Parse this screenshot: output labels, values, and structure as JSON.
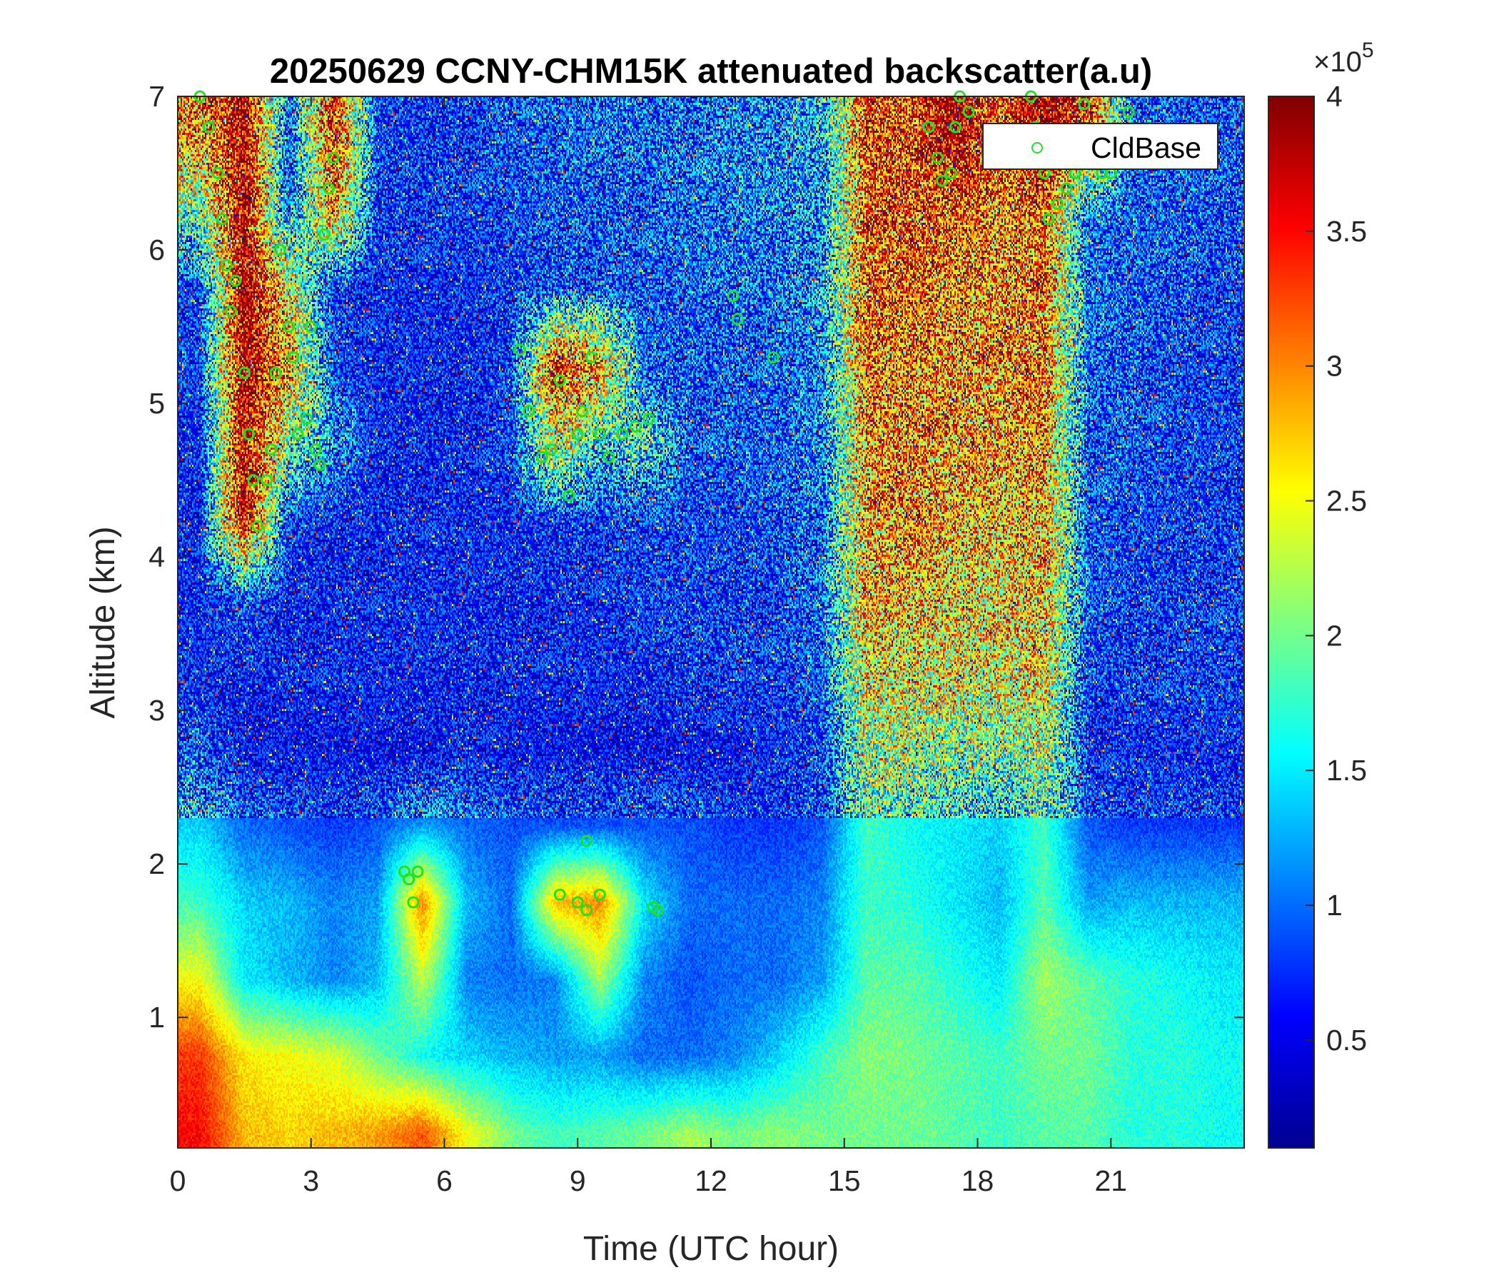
{
  "chart_data": {
    "type": "heatmap",
    "title": "20250629 CCNY-CHM15K attenuated backscatter(a.u)",
    "xlabel": "Time (UTC hour)",
    "ylabel": "Altitude (km)",
    "xlim": [
      0,
      24
    ],
    "ylim": [
      0.15,
      7
    ],
    "xticks": [
      "0",
      "3",
      "6",
      "9",
      "12",
      "15",
      "18",
      "21"
    ],
    "xtick_values": [
      0,
      3,
      6,
      9,
      12,
      15,
      18,
      21
    ],
    "yticks": [
      "1",
      "2",
      "3",
      "4",
      "5",
      "6",
      "7"
    ],
    "ytick_values": [
      1,
      2,
      3,
      4,
      5,
      6,
      7
    ],
    "colorbar": {
      "colormap": "jet",
      "clim": [
        0.1,
        4
      ],
      "multiplier": "×10",
      "exponent": "5",
      "ticks": [
        "0.5",
        "1",
        "1.5",
        "2",
        "2.5",
        "3",
        "3.5",
        "4"
      ],
      "tick_values": [
        0.5,
        1,
        1.5,
        2,
        2.5,
        3,
        3.5,
        4
      ]
    },
    "grid": false,
    "hours": [
      0.5,
      1.5,
      2.5,
      3.5,
      4.5,
      5.5,
      6.5,
      7.5,
      8.5,
      9.5,
      10.5,
      11.5,
      12.5,
      13.5,
      14.5,
      15.5,
      16.5,
      17.5,
      18.5,
      19.5,
      20.5,
      21.5,
      22.5,
      23.5
    ],
    "altitudes": [
      0.25,
      0.75,
      1.25,
      1.75,
      2.25,
      2.75,
      3.25,
      3.75,
      4.25,
      4.75,
      5.25,
      5.75,
      6.25,
      6.75
    ],
    "values": [
      [
        3.5,
        2.8,
        2.7,
        2.8,
        2.9,
        3.2,
        2.5,
        2.0,
        1.8,
        1.9,
        2.0,
        2.2,
        2.0,
        2.1,
        2.0,
        2.0,
        2.0,
        1.9,
        1.8,
        1.9,
        1.9,
        1.7,
        1.7,
        1.6
      ],
      [
        3.3,
        2.6,
        2.5,
        2.4,
        2.0,
        1.6,
        1.4,
        1.3,
        1.2,
        1.2,
        1.0,
        1.0,
        1.1,
        1.4,
        1.8,
        2.1,
        2.0,
        1.9,
        1.8,
        2.0,
        2.0,
        1.7,
        1.7,
        1.6
      ],
      [
        2.5,
        1.5,
        1.3,
        1.1,
        1.3,
        2.3,
        1.1,
        1.0,
        1.1,
        2.2,
        1.1,
        0.9,
        1.0,
        1.0,
        1.2,
        1.9,
        1.9,
        1.7,
        1.5,
        2.2,
        1.9,
        1.7,
        1.6,
        1.5
      ],
      [
        1.8,
        1.4,
        1.3,
        1.1,
        1.2,
        3.0,
        1.3,
        1.0,
        2.8,
        3.0,
        1.5,
        1.0,
        1.0,
        1.0,
        1.1,
        1.8,
        1.7,
        1.5,
        1.3,
        1.9,
        1.2,
        1.3,
        1.3,
        1.3
      ],
      [
        1.4,
        1.0,
        0.9,
        0.8,
        0.9,
        1.2,
        1.0,
        0.9,
        0.9,
        0.9,
        0.9,
        0.9,
        0.8,
        0.8,
        0.9,
        1.8,
        1.6,
        1.5,
        1.4,
        1.8,
        0.9,
        0.8,
        0.8,
        0.8
      ],
      [
        0.9,
        0.6,
        0.6,
        0.6,
        0.6,
        0.6,
        0.7,
        0.6,
        0.6,
        0.6,
        0.6,
        0.6,
        0.6,
        0.7,
        0.8,
        2.2,
        2.2,
        2.0,
        1.9,
        2.3,
        0.7,
        0.7,
        0.7,
        0.7
      ],
      [
        0.7,
        0.7,
        0.7,
        0.7,
        0.7,
        0.7,
        0.7,
        0.7,
        0.7,
        0.7,
        0.7,
        0.8,
        0.8,
        0.8,
        0.9,
        2.6,
        2.6,
        2.5,
        2.5,
        2.6,
        0.8,
        0.8,
        0.8,
        0.8
      ],
      [
        0.7,
        0.9,
        0.7,
        0.7,
        0.7,
        0.7,
        0.7,
        0.7,
        0.7,
        0.7,
        0.8,
        0.8,
        0.8,
        0.8,
        1.0,
        2.8,
        2.8,
        2.7,
        2.6,
        2.8,
        0.9,
        0.8,
        0.8,
        0.8
      ],
      [
        0.7,
        3.9,
        0.8,
        0.7,
        0.7,
        0.7,
        0.7,
        0.7,
        0.8,
        0.8,
        0.8,
        0.8,
        0.8,
        0.9,
        1.0,
        2.9,
        3.0,
        2.8,
        2.8,
        2.9,
        0.9,
        0.8,
        0.8,
        0.8
      ],
      [
        0.7,
        4.0,
        2.0,
        1.2,
        0.7,
        0.7,
        0.7,
        0.8,
        2.5,
        1.5,
        1.8,
        0.9,
        0.9,
        0.9,
        1.1,
        3.0,
        3.1,
        2.9,
        2.9,
        3.0,
        0.9,
        0.9,
        0.8,
        0.8
      ],
      [
        0.8,
        4.0,
        3.0,
        0.8,
        0.7,
        0.7,
        0.7,
        0.8,
        3.5,
        3.0,
        0.9,
        0.9,
        0.9,
        0.9,
        1.1,
        3.1,
        3.1,
        3.0,
        3.0,
        3.1,
        1.0,
        0.9,
        0.8,
        0.8
      ],
      [
        0.8,
        4.0,
        2.5,
        0.8,
        0.7,
        0.7,
        0.7,
        0.8,
        0.9,
        0.9,
        0.9,
        0.9,
        1.0,
        1.0,
        1.2,
        3.2,
        3.2,
        3.1,
        3.0,
        3.2,
        1.0,
        0.9,
        0.9,
        0.8
      ],
      [
        2.0,
        4.0,
        0.9,
        3.0,
        0.8,
        0.8,
        0.8,
        0.8,
        0.9,
        0.9,
        0.9,
        1.0,
        1.0,
        1.1,
        1.2,
        3.3,
        3.3,
        3.2,
        3.1,
        3.3,
        1.0,
        0.9,
        0.9,
        0.9
      ],
      [
        3.0,
        4.0,
        0.9,
        3.5,
        0.8,
        0.8,
        0.8,
        0.9,
        0.9,
        1.0,
        1.0,
        1.0,
        1.1,
        1.1,
        1.3,
        3.4,
        3.4,
        4.0,
        3.2,
        4.0,
        3.5,
        1.0,
        0.9,
        0.9
      ]
    ],
    "series": [
      {
        "name": "CldBase",
        "type": "scatter",
        "marker": "circle",
        "color": "#22e022",
        "points": [
          [
            0.5,
            7.0
          ],
          [
            0.7,
            6.8
          ],
          [
            0.9,
            6.5
          ],
          [
            1.0,
            6.2
          ],
          [
            1.1,
            5.9
          ],
          [
            1.3,
            5.8
          ],
          [
            1.2,
            5.6
          ],
          [
            1.5,
            5.2
          ],
          [
            1.6,
            4.8
          ],
          [
            1.7,
            4.5
          ],
          [
            1.8,
            4.2
          ],
          [
            2.0,
            4.5
          ],
          [
            2.1,
            4.7
          ],
          [
            2.2,
            5.2
          ],
          [
            2.3,
            6.0
          ],
          [
            2.5,
            5.5
          ],
          [
            2.6,
            5.3
          ],
          [
            2.7,
            4.8
          ],
          [
            2.9,
            4.9
          ],
          [
            3.0,
            5.5
          ],
          [
            3.1,
            4.7
          ],
          [
            3.2,
            4.6
          ],
          [
            3.3,
            6.1
          ],
          [
            3.4,
            6.4
          ],
          [
            3.5,
            6.6
          ],
          [
            5.1,
            1.95
          ],
          [
            5.2,
            1.9
          ],
          [
            5.4,
            1.95
          ],
          [
            5.3,
            1.75
          ],
          [
            7.7,
            5.35
          ],
          [
            7.9,
            4.95
          ],
          [
            8.2,
            4.65
          ],
          [
            8.4,
            4.7
          ],
          [
            8.6,
            5.15
          ],
          [
            8.8,
            4.4
          ],
          [
            9.0,
            4.8
          ],
          [
            9.1,
            4.95
          ],
          [
            9.3,
            5.3
          ],
          [
            9.5,
            4.8
          ],
          [
            9.7,
            4.65
          ],
          [
            10.0,
            4.8
          ],
          [
            10.3,
            4.85
          ],
          [
            10.6,
            4.9
          ],
          [
            8.6,
            1.8
          ],
          [
            9.0,
            1.75
          ],
          [
            9.2,
            1.7
          ],
          [
            9.2,
            2.15
          ],
          [
            9.5,
            1.8
          ],
          [
            10.7,
            1.72
          ],
          [
            10.8,
            1.7
          ],
          [
            12.5,
            5.7
          ],
          [
            12.6,
            5.55
          ],
          [
            13.4,
            5.3
          ],
          [
            16.9,
            6.8
          ],
          [
            17.1,
            6.6
          ],
          [
            17.2,
            6.45
          ],
          [
            17.4,
            6.5
          ],
          [
            17.5,
            6.8
          ],
          [
            17.6,
            7.0
          ],
          [
            17.8,
            6.9
          ],
          [
            19.2,
            7.0
          ],
          [
            19.3,
            6.8
          ],
          [
            19.5,
            6.5
          ],
          [
            19.6,
            6.2
          ],
          [
            19.8,
            6.3
          ],
          [
            20.0,
            6.4
          ],
          [
            20.2,
            6.5
          ],
          [
            20.4,
            6.95
          ],
          [
            20.8,
            6.5
          ],
          [
            21.0,
            6.5
          ],
          [
            21.4,
            6.9
          ]
        ]
      }
    ],
    "legend": {
      "position": "top-right",
      "entries": [
        "CldBase"
      ]
    }
  }
}
